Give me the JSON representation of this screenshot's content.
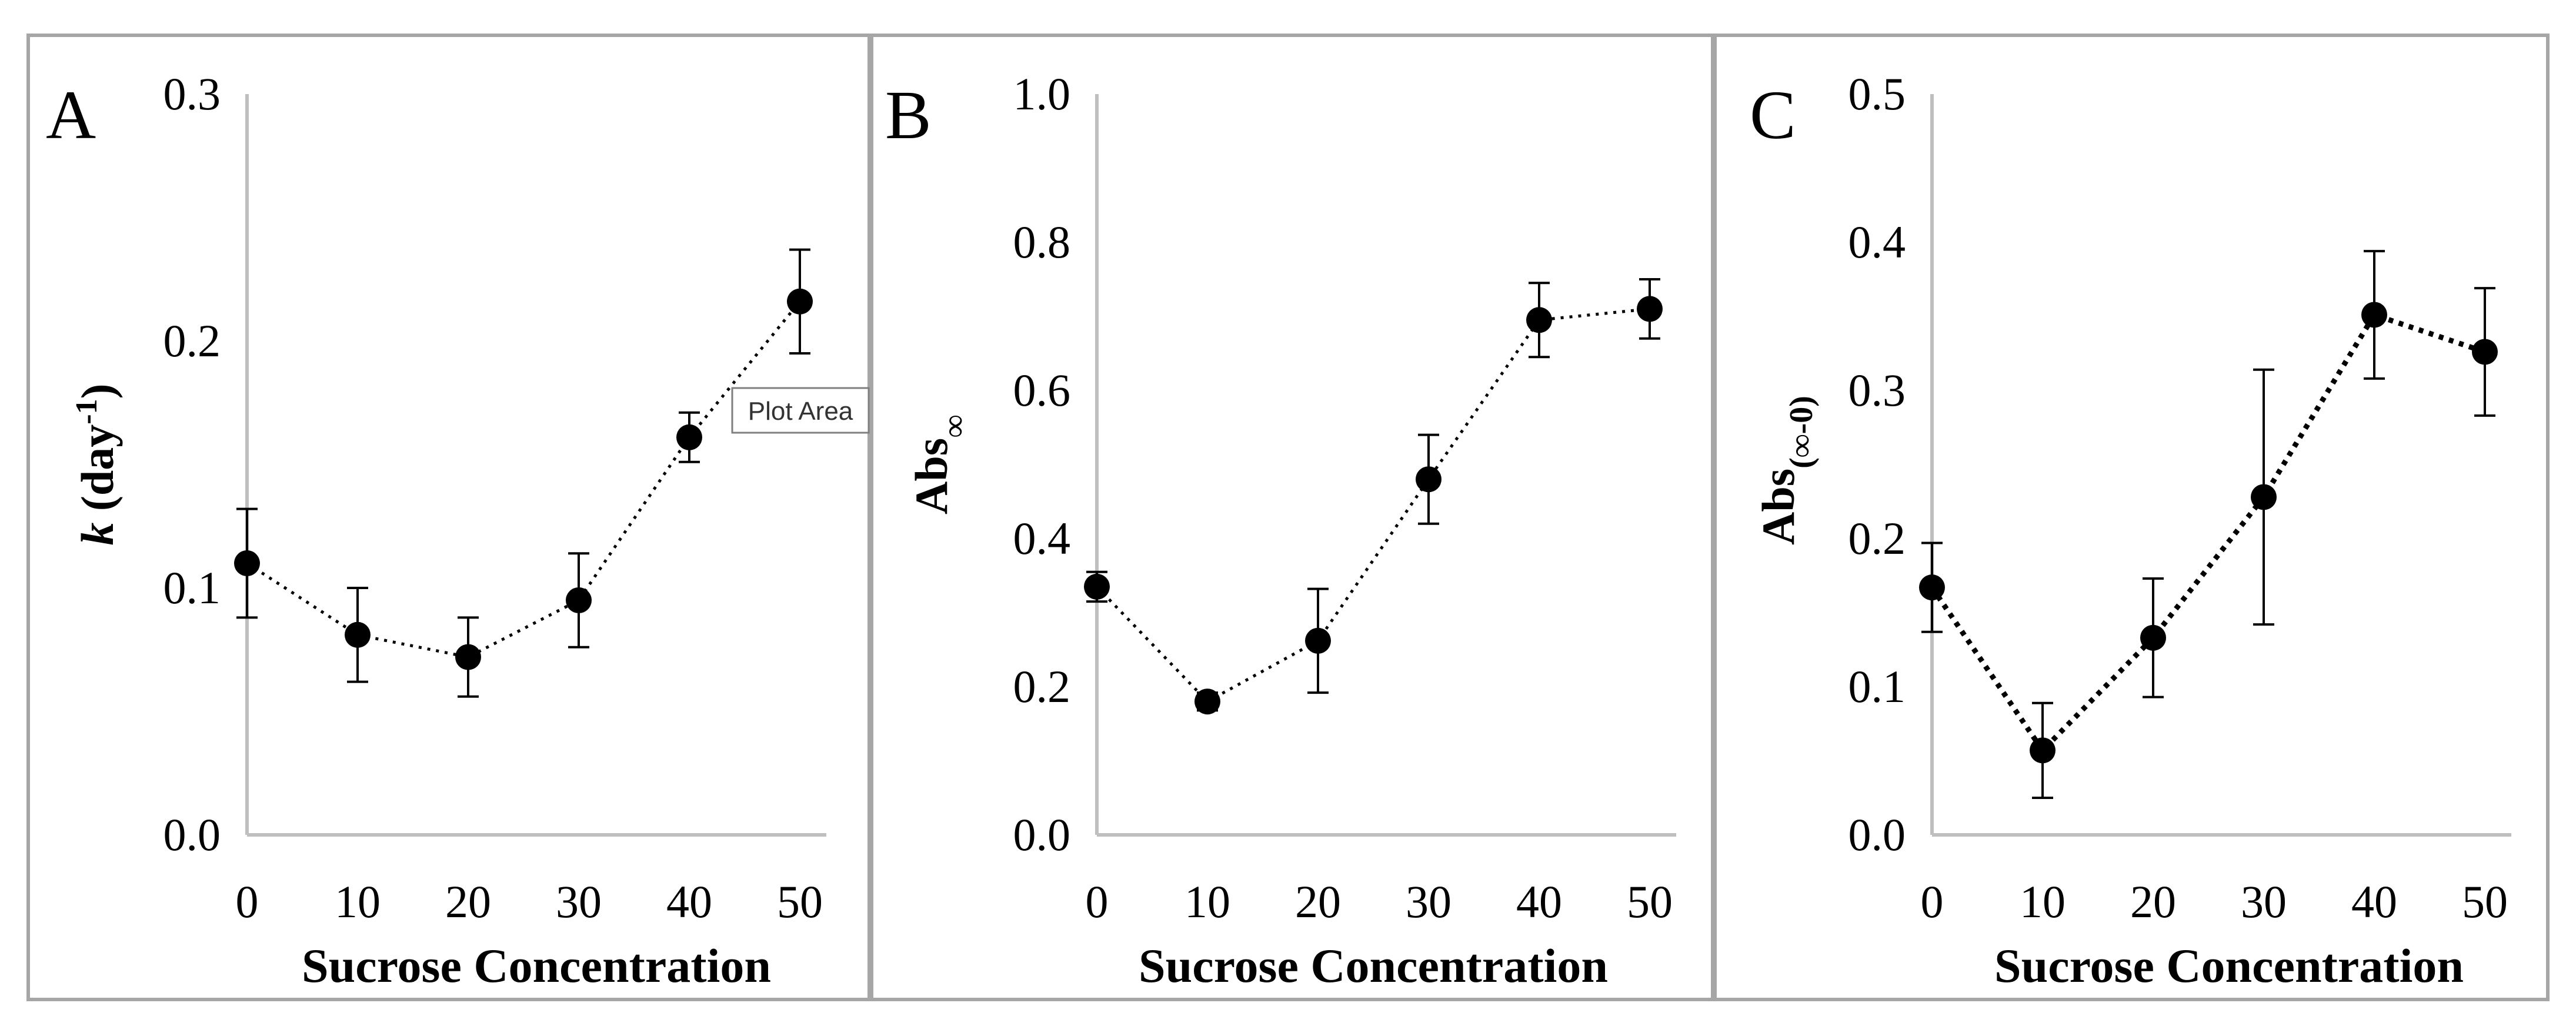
{
  "chart_data": [
    {
      "panel_label": "A",
      "type": "line",
      "xlabel": "Sucrose Concentration",
      "ylabel_main": "k",
      "ylabel_rest": " (day",
      "ylabel_sup": "-1",
      "ylabel_end": ")",
      "categories": [
        "0",
        "10",
        "20",
        "30",
        "40",
        "50"
      ],
      "x": [
        0,
        10,
        20,
        30,
        40,
        50
      ],
      "values": [
        0.11,
        0.081,
        0.072,
        0.095,
        0.161,
        0.216
      ],
      "errors": [
        0.022,
        0.019,
        0.016,
        0.019,
        0.01,
        0.021
      ],
      "ylim": [
        0,
        0.3
      ],
      "yticks": [
        0,
        0.1,
        0.2,
        0.3
      ],
      "ytick_labels": [
        "0.0",
        "0.1",
        "0.2",
        "0.3"
      ],
      "line_style": "dotted"
    },
    {
      "panel_label": "B",
      "type": "line",
      "xlabel": "Sucrose Concentration",
      "ylabel_main": "Abs",
      "ylabel_sub": "∞",
      "categories": [
        "0",
        "10",
        "20",
        "30",
        "40",
        "50"
      ],
      "x": [
        0,
        10,
        20,
        30,
        40,
        50
      ],
      "values": [
        0.335,
        0.18,
        0.262,
        0.48,
        0.695,
        0.71
      ],
      "errors": [
        0.02,
        0.012,
        0.07,
        0.06,
        0.05,
        0.04
      ],
      "ylim": [
        0,
        1.0
      ],
      "yticks": [
        0,
        0.2,
        0.4,
        0.6,
        0.8,
        1.0
      ],
      "ytick_labels": [
        "0.0",
        "0.2",
        "0.4",
        "0.6",
        "0.8",
        "1.0"
      ],
      "line_style": "dotted"
    },
    {
      "panel_label": "C",
      "type": "line",
      "xlabel": "Sucrose Concentration",
      "ylabel_main": "Abs",
      "ylabel_sub": "(∞-0)",
      "categories": [
        "0",
        "10",
        "20",
        "30",
        "40",
        "50"
      ],
      "x": [
        0,
        10,
        20,
        30,
        40,
        50
      ],
      "values": [
        0.167,
        0.057,
        0.133,
        0.228,
        0.351,
        0.326
      ],
      "errors": [
        0.03,
        0.032,
        0.04,
        0.086,
        0.043,
        0.043
      ],
      "ylim": [
        0,
        0.5
      ],
      "yticks": [
        0,
        0.1,
        0.2,
        0.3,
        0.4,
        0.5
      ],
      "ytick_labels": [
        "0.0",
        "0.1",
        "0.2",
        "0.3",
        "0.4",
        "0.5"
      ],
      "line_style": "dotted-bold"
    }
  ],
  "tooltip": {
    "text": "Plot Area"
  }
}
